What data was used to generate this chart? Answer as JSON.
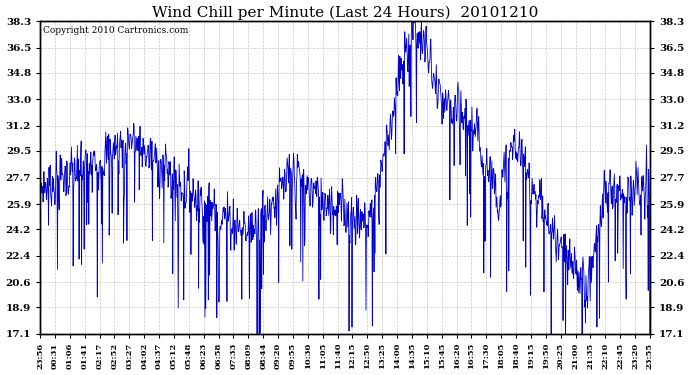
{
  "title": "Wind Chill per Minute (Last 24 Hours)  20101210",
  "copyright": "Copyright 2010 Cartronics.com",
  "line_color": "#0000CC",
  "bg_color": "#FFFFFF",
  "plot_bg_color": "#FFFFFF",
  "grid_color": "#BBBBBB",
  "yticks": [
    17.1,
    18.9,
    20.6,
    22.4,
    24.2,
    25.9,
    27.7,
    29.5,
    31.2,
    33.0,
    34.8,
    36.5,
    38.3
  ],
  "ylim": [
    17.1,
    38.3
  ],
  "xtick_labels": [
    "23:56",
    "00:31",
    "01:06",
    "01:41",
    "02:17",
    "02:52",
    "03:27",
    "04:02",
    "04:37",
    "05:12",
    "05:48",
    "06:23",
    "06:58",
    "07:33",
    "08:09",
    "08:44",
    "09:20",
    "09:55",
    "10:30",
    "11:05",
    "11:40",
    "12:15",
    "12:50",
    "13:25",
    "14:00",
    "14:35",
    "15:10",
    "15:45",
    "16:20",
    "16:55",
    "17:30",
    "18:05",
    "18:40",
    "19:15",
    "19:50",
    "20:25",
    "21:00",
    "21:35",
    "22:10",
    "22:45",
    "23:20",
    "23:55"
  ],
  "num_points": 1440,
  "figsize": [
    6.9,
    3.75
  ],
  "dpi": 100
}
